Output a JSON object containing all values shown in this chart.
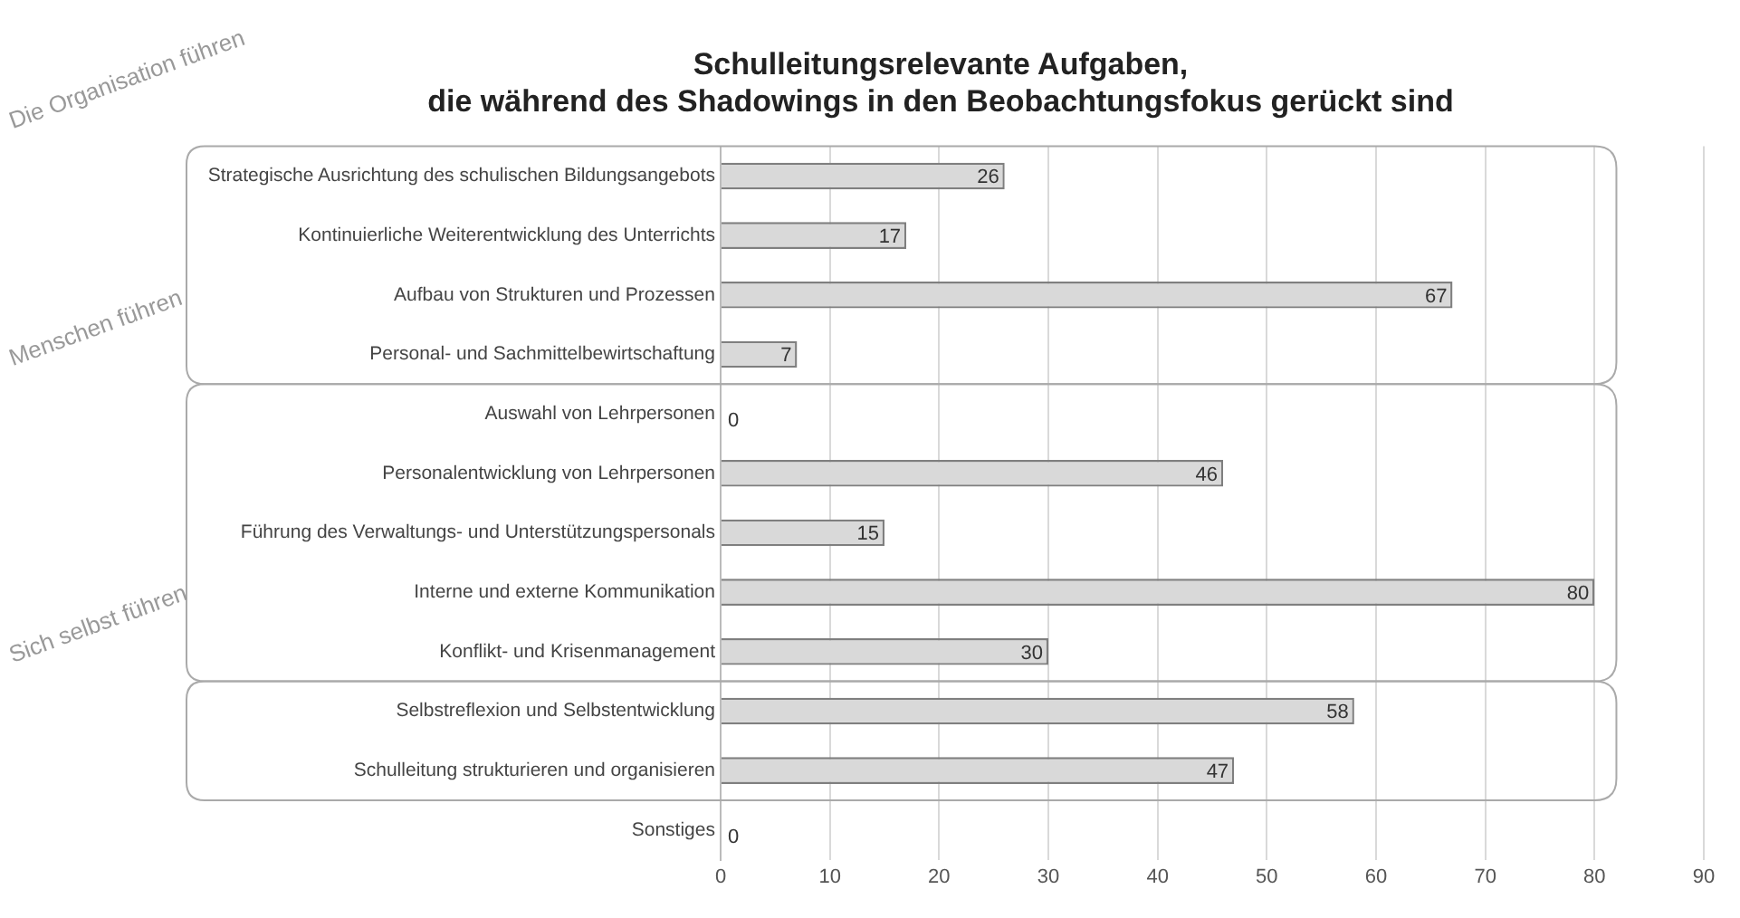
{
  "chart_data": {
    "type": "bar",
    "orientation": "horizontal",
    "title": "Schulleitungsrelevante Aufgaben, die während des Shadowings in den Beobachtungsfokus gerückt sind",
    "categories": [
      "Strategische Ausrichtung des schulischen Bildungsangebots",
      "Kontinuierliche Weiterentwicklung des Unterrichts",
      "Aufbau von Strukturen und Prozessen",
      "Personal- und Sachmittelbewirtschaftung",
      "Auswahl von Lehrpersonen",
      "Personalentwicklung von Lehrpersonen",
      "Führung des Verwaltungs- und Unterstützungspersonals",
      "Interne und externe Kommunikation",
      "Konflikt- und Krisenmanagement",
      "Selbstreflexion und Selbstentwicklung",
      "Schulleitung strukturieren und organisieren",
      "Sonstiges"
    ],
    "values": [
      26,
      17,
      67,
      7,
      0,
      46,
      15,
      80,
      30,
      58,
      47,
      0
    ],
    "color": "#d9d9d9",
    "xlim": [
      0,
      90
    ],
    "xticks": [
      0,
      10,
      20,
      30,
      40,
      50,
      60,
      70,
      80,
      90
    ],
    "grid": "x",
    "legend": false,
    "data_labels": true,
    "annotations": [
      "Die Organisation führen",
      "Menschen führen",
      "Sich selbst führen"
    ]
  }
}
